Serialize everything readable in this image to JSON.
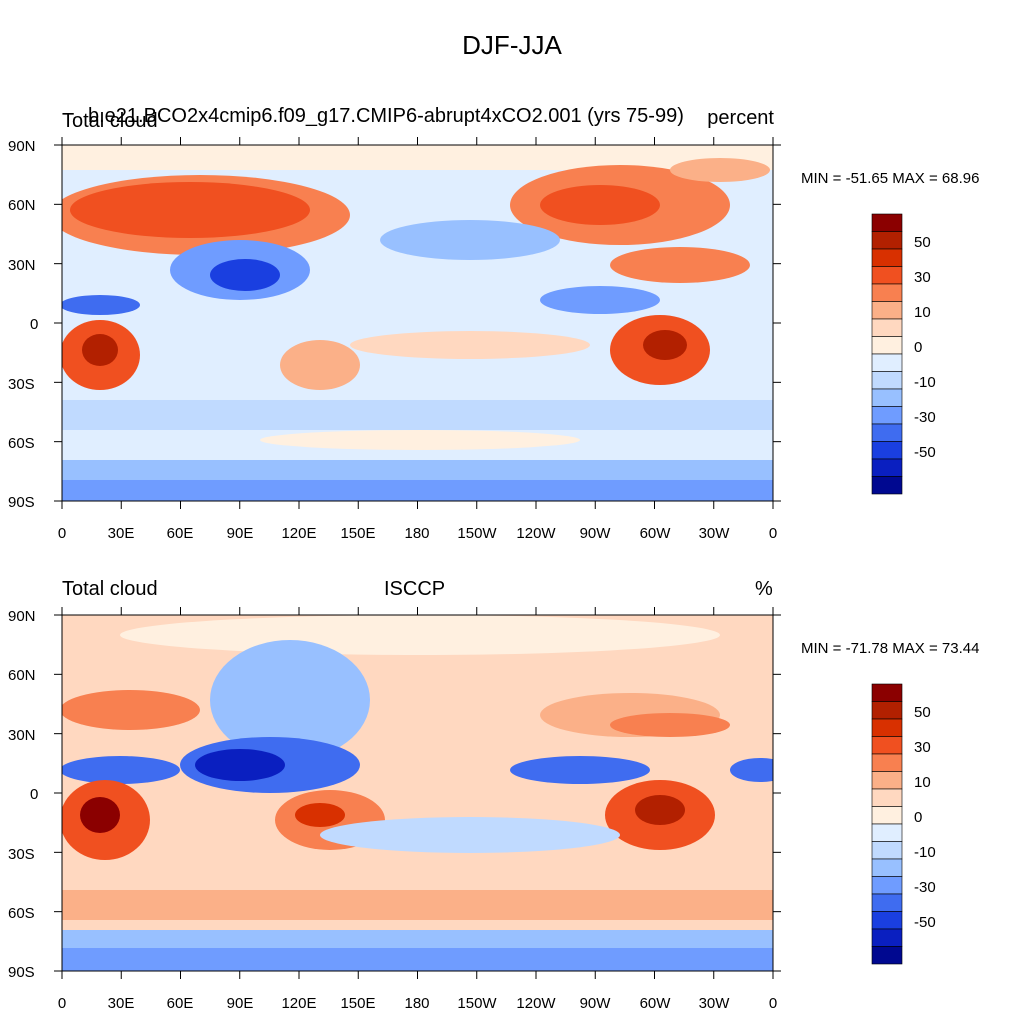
{
  "figure": {
    "title": "DJF-JJA"
  },
  "lat_ticks": [
    "90N",
    "60N",
    "30N",
    "0",
    "30S",
    "60S",
    "90S"
  ],
  "lon_ticks": [
    "0",
    "30E",
    "60E",
    "90E",
    "120E",
    "150E",
    "180",
    "150W",
    "120W",
    "90W",
    "60W",
    "30W",
    "0"
  ],
  "colorbar": {
    "colors": [
      "#8b0000",
      "#b22000",
      "#d83000",
      "#f05020",
      "#f88050",
      "#fbb088",
      "#ffd8c0",
      "#fff0e0",
      "#e0eeff",
      "#c0daff",
      "#98c0ff",
      "#6f9cff",
      "#3f6cf0",
      "#1a3fe0",
      "#0a1fc0",
      "#000890"
    ],
    "labels": [
      "50",
      "30",
      "10",
      "0",
      "-10",
      "-30",
      "-50"
    ]
  },
  "panels": [
    {
      "left_label": "Total cloud",
      "center_label": "b.e21.BCO2x4cmip6.f09_g17.CMIP6-abrupt4xCO2.001 (yrs 75-99)",
      "right_label": "percent",
      "minmax": "MIN = -51.65 MAX =  68.96"
    },
    {
      "left_label": "Total cloud",
      "center_label": "ISCCP",
      "right_label": "%",
      "minmax": "MIN = -71.78 MAX =  73.44"
    }
  ]
}
